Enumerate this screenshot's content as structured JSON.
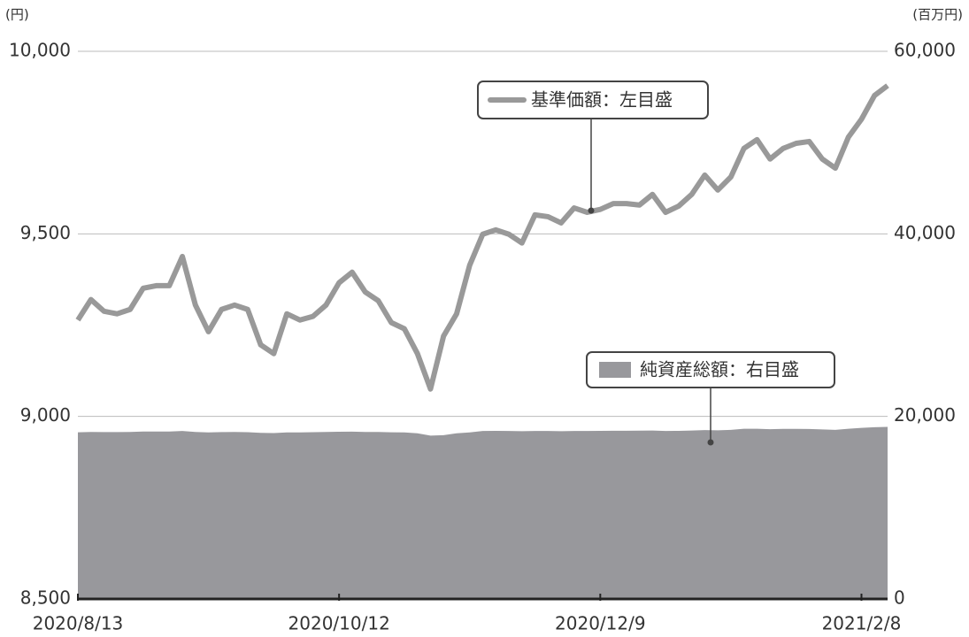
{
  "chart_data": {
    "type": "line",
    "y_unit_label": "(円)",
    "y2_unit_label": "(百万円)",
    "categories": [
      "2020/8/13",
      null,
      null,
      null,
      null,
      null,
      null,
      null,
      null,
      null,
      null,
      null,
      null,
      null,
      null,
      null,
      null,
      null,
      null,
      null,
      "2020/10/12",
      null,
      null,
      null,
      null,
      null,
      null,
      null,
      null,
      null,
      null,
      null,
      null,
      null,
      null,
      null,
      null,
      null,
      null,
      null,
      "2020/12/9",
      null,
      null,
      null,
      null,
      null,
      null,
      null,
      null,
      null,
      null,
      null,
      null,
      null,
      null,
      null,
      null,
      null,
      null,
      null,
      "2021/2/8",
      null,
      null
    ],
    "series": [
      {
        "name": "基準価額：左目盛",
        "type": "line",
        "color": "#999999",
        "values": [
          9264,
          9320,
          9288,
          9281,
          9293,
          9351,
          9358,
          9358,
          9438,
          9305,
          9232,
          9293,
          9305,
          9293,
          9196,
          9172,
          9281,
          9264,
          9274,
          9305,
          9366,
          9395,
          9341,
          9317,
          9257,
          9240,
          9172,
          9075,
          9220,
          9281,
          9414,
          9499,
          9511,
          9499,
          9475,
          9552,
          9547,
          9530,
          9571,
          9559,
          9567,
          9583,
          9583,
          9579,
          9608,
          9559,
          9576,
          9608,
          9661,
          9620,
          9656,
          9734,
          9758,
          9705,
          9734,
          9748,
          9753,
          9705,
          9680,
          9765,
          9814,
          9879,
          9906
        ]
      },
      {
        "name": "純資産総額：右目盛",
        "type": "area",
        "axis": "y2",
        "color": "#98989c",
        "values": [
          18260,
          18300,
          18280,
          18280,
          18300,
          18350,
          18350,
          18350,
          18400,
          18300,
          18250,
          18280,
          18290,
          18270,
          18200,
          18180,
          18250,
          18250,
          18270,
          18300,
          18320,
          18330,
          18300,
          18290,
          18260,
          18250,
          18150,
          17900,
          17950,
          18150,
          18250,
          18400,
          18420,
          18400,
          18380,
          18400,
          18400,
          18380,
          18400,
          18400,
          18420,
          18430,
          18430,
          18440,
          18450,
          18400,
          18420,
          18450,
          18500,
          18480,
          18520,
          18650,
          18650,
          18600,
          18640,
          18640,
          18620,
          18580,
          18520,
          18650,
          18750,
          18820,
          18850
        ]
      }
    ],
    "ylim": [
      8500,
      10000
    ],
    "yticks": [
      {
        "value": 8500,
        "label": "8,500"
      },
      {
        "value": 9000,
        "label": "9,000"
      },
      {
        "value": 9500,
        "label": "9,500"
      },
      {
        "value": 10000,
        "label": "10,000"
      }
    ],
    "y2lim": [
      0,
      60000
    ],
    "y2ticks": [
      0,
      {
        "value": 20000,
        "label": "20,000"
      },
      {
        "value": 40000,
        "label": "40,000"
      },
      {
        "value": 60000,
        "label": "60,000"
      }
    ],
    "grid": true
  }
}
